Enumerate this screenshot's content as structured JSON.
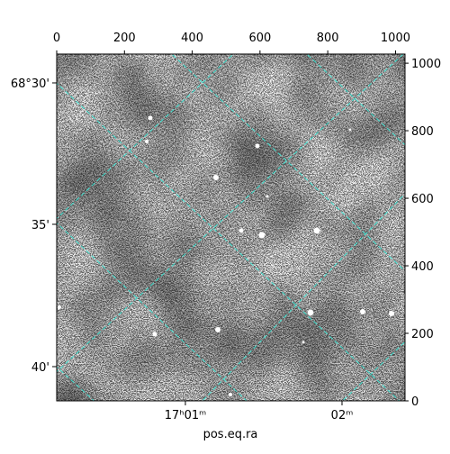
{
  "chart_data": {
    "type": "image",
    "xlabel": "pos.eq.ra",
    "xlim": [
      0,
      1028
    ],
    "xticks": [
      0,
      200,
      400,
      600,
      800,
      1000
    ],
    "ylim": [
      0,
      1027
    ],
    "yticks": [
      0,
      200,
      400,
      600,
      800,
      1000
    ],
    "ra_ticks": [
      "17ʰ01ᵐ",
      "02ᵐ"
    ],
    "dec_ticks": [
      "68°30'",
      "35'",
      "40'"
    ],
    "grid_color": "#40e0d0"
  }
}
